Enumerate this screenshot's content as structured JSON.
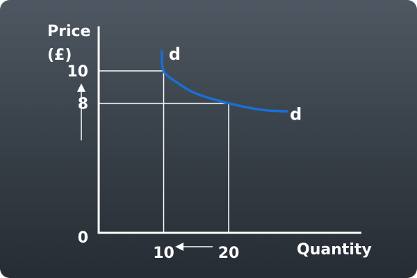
{
  "chart_data": {
    "type": "line",
    "xlabel": "Quantity",
    "ylabel_line1": "Price",
    "ylabel_line2": "(£)",
    "x_ticks": [
      {
        "value": 10,
        "label": "10"
      },
      {
        "value": 20,
        "label": "20"
      }
    ],
    "y_ticks": [
      {
        "value": 0,
        "label": "0"
      },
      {
        "value": 8,
        "label": "8"
      },
      {
        "value": 10,
        "label": "10"
      }
    ],
    "xlim": [
      0,
      40
    ],
    "ylim": [
      0,
      12
    ],
    "series": [
      {
        "label_start": "d",
        "label_end": "d",
        "color": "#1a6fd6",
        "points": [
          [
            9.7,
            11.2
          ],
          [
            10,
            10
          ],
          [
            12,
            9.3
          ],
          [
            15,
            8.6
          ],
          [
            20,
            8
          ],
          [
            25,
            7.6
          ],
          [
            29,
            7.5
          ]
        ]
      }
    ],
    "reference_points": [
      {
        "x": 10,
        "y": 10
      },
      {
        "x": 20,
        "y": 8
      }
    ],
    "annotations": {
      "price_arrow": "up",
      "quantity_arrow": "left"
    },
    "colors": {
      "axis": "#ffffff",
      "guide": "#ffffff",
      "curve": "#1a6fd6",
      "text": "#ffffff"
    }
  }
}
